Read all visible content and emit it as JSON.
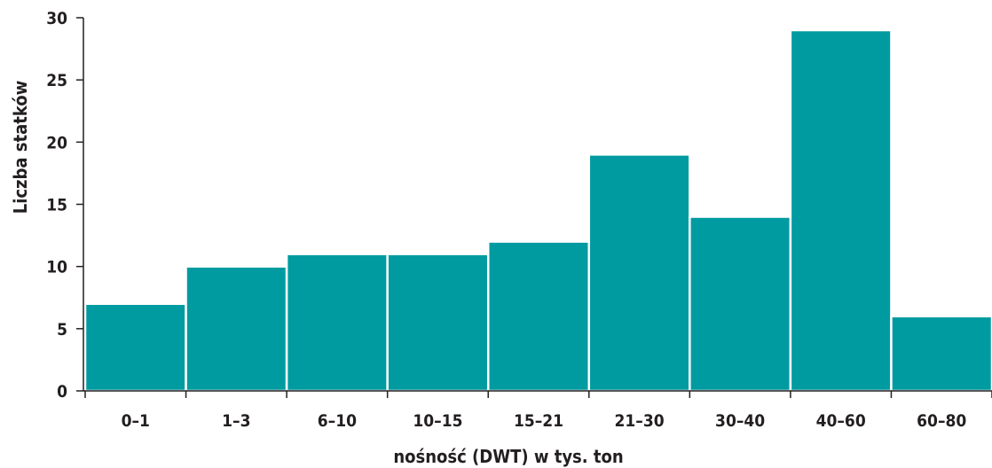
{
  "chart_data": {
    "type": "bar",
    "categories": [
      "0–1",
      "1–3",
      "6–10",
      "10–15",
      "15–21",
      "21–30",
      "30–40",
      "40–60",
      "60–80"
    ],
    "values": [
      7,
      10,
      11,
      11,
      12,
      19,
      14,
      29,
      6
    ],
    "xlabel": "nośność (DWT) w tys. ton",
    "ylabel": "Liczba statków",
    "ylim": [
      0,
      30
    ],
    "yticks": [
      0,
      5,
      10,
      15,
      20,
      25,
      30
    ],
    "grid": false,
    "legend": "none",
    "colors": {
      "bar": "#009ba0",
      "axis": "#231f20",
      "bar_separator": "#ffffff"
    }
  }
}
